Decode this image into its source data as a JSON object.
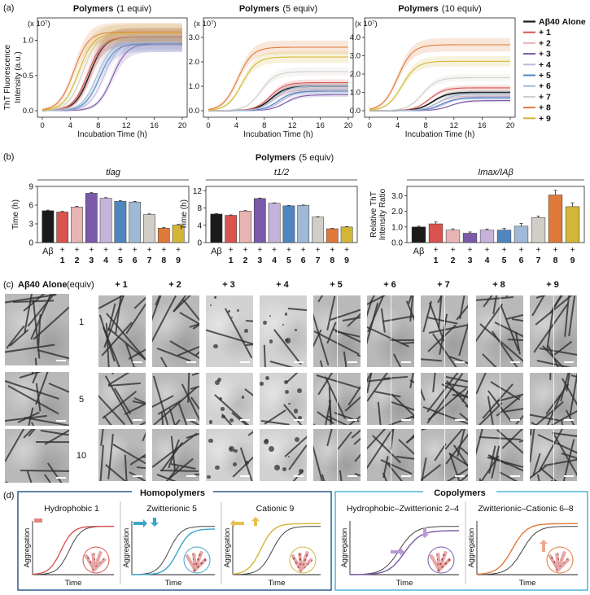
{
  "panel_a": {
    "label": "(a)",
    "ylabel_1": "ThT Fluorescence",
    "ylabel_2": "Intensity (a.u.)",
    "xlabel": "Incubation Time (h)",
    "scale": "(x 10⁷)",
    "legend": [
      {
        "label": "Aβ40 Alone",
        "color": "#1a1a1a"
      },
      {
        "label": "+ 1",
        "color": "#d9534f"
      },
      {
        "label": "+ 2",
        "color": "#e8b4b4"
      },
      {
        "label": "+ 3",
        "color": "#7a5aa8"
      },
      {
        "label": "+ 4",
        "color": "#c5b3dc"
      },
      {
        "label": "+ 5",
        "color": "#4f86c0"
      },
      {
        "label": "+ 6",
        "color": "#9fb9d6"
      },
      {
        "label": "+ 7",
        "color": "#d0cec6"
      },
      {
        "label": "+ 8",
        "color": "#e07a3a"
      },
      {
        "label": "+ 9",
        "color": "#d4b636"
      }
    ]
  },
  "panel_b": {
    "label": "(b)",
    "heading_bold": "Polymers",
    "heading_rest": "(5 equiv)"
  },
  "panel_c": {
    "label": "(c)",
    "alone_label": "Aβ40 Alone",
    "equiv_label": "(equiv)",
    "columns": [
      "+ 1",
      "+ 2",
      "+ 3",
      "+ 4",
      "+ 5",
      "+ 6",
      "+ 7",
      "+ 8",
      "+ 9"
    ],
    "rows": [
      "1",
      "5",
      "10"
    ]
  },
  "panel_d": {
    "label": "(d)",
    "homo_title": "Homopolymers",
    "co_title": "Copolymers",
    "cards": [
      {
        "title": "Hydrophobic 1"
      },
      {
        "title": "Zwitterionic 5"
      },
      {
        "title": "Cationic 9"
      },
      {
        "title": "Hydrophobic–Zwitterionic 2–4"
      },
      {
        "title": "Zwitterionic–Cationic 6–8"
      }
    ],
    "axis_y": "Aggregation",
    "axis_x": "Time"
  },
  "chart_data": [
    {
      "type": "line",
      "title": "Polymers (1 equiv)",
      "xlabel": "Incubation Time (h)",
      "ylabel": "ThT Fluorescence Intensity (a.u.)",
      "xlim": [
        0,
        20
      ],
      "ylim": [
        0,
        1.25
      ],
      "xticks": [
        0,
        4,
        8,
        12,
        16,
        20
      ],
      "yticks": [
        0.0,
        0.5,
        1.0
      ],
      "series": [
        {
          "name": "Aβ40 Alone",
          "t50": 6.8,
          "max": 1.05
        },
        {
          "name": "+ 1",
          "t50": 6.5,
          "max": 1.05
        },
        {
          "name": "+ 2",
          "t50": 7.0,
          "max": 1.0
        },
        {
          "name": "+ 3",
          "t50": 10.0,
          "max": 0.95
        },
        {
          "name": "+ 4",
          "t50": 8.8,
          "max": 0.98
        },
        {
          "name": "+ 5",
          "t50": 8.2,
          "max": 0.95
        },
        {
          "name": "+ 6",
          "t50": 7.8,
          "max": 0.98
        },
        {
          "name": "+ 7",
          "t50": 5.8,
          "max": 1.1
        },
        {
          "name": "+ 8",
          "t50": 4.5,
          "max": 1.12
        },
        {
          "name": "+ 9",
          "t50": 5.2,
          "max": 1.1
        }
      ]
    },
    {
      "type": "line",
      "title": "Polymers (5 equiv)",
      "xlabel": "Incubation Time (h)",
      "xlim": [
        0,
        20
      ],
      "ylim": [
        0,
        3.6
      ],
      "xticks": [
        0,
        4,
        8,
        12,
        16,
        20
      ],
      "yticks": [
        0.0,
        1.0,
        2.0,
        3.0
      ],
      "series": [
        {
          "name": "Aβ40 Alone",
          "t50": 9.0,
          "max": 1.0
        },
        {
          "name": "+ 1",
          "t50": 8.8,
          "max": 1.15
        },
        {
          "name": "+ 2",
          "t50": 9.2,
          "max": 0.85
        },
        {
          "name": "+ 3",
          "t50": 11.0,
          "max": 0.65
        },
        {
          "name": "+ 4",
          "t50": 10.5,
          "max": 0.8
        },
        {
          "name": "+ 5",
          "t50": 10.0,
          "max": 0.8
        },
        {
          "name": "+ 6",
          "t50": 9.5,
          "max": 1.0
        },
        {
          "name": "+ 7",
          "t50": 7.5,
          "max": 1.6
        },
        {
          "name": "+ 8",
          "t50": 4.2,
          "max": 2.6
        },
        {
          "name": "+ 9",
          "t50": 4.8,
          "max": 2.2
        }
      ]
    },
    {
      "type": "line",
      "title": "Polymers (10 equiv)",
      "xlabel": "Incubation Time (h)",
      "xlim": [
        0,
        20
      ],
      "ylim": [
        0,
        4.8
      ],
      "xticks": [
        0,
        4,
        8,
        12,
        16,
        20
      ],
      "yticks": [
        0.0,
        1.0,
        2.0,
        3.0,
        4.0
      ],
      "series": [
        {
          "name": "Aβ40 Alone",
          "t50": 9.0,
          "max": 1.0
        },
        {
          "name": "+ 1",
          "t50": 8.5,
          "max": 1.25
        },
        {
          "name": "+ 2",
          "t50": 9.5,
          "max": 0.8
        },
        {
          "name": "+ 3",
          "t50": 11.5,
          "max": 0.55
        },
        {
          "name": "+ 4",
          "t50": 10.8,
          "max": 0.75
        },
        {
          "name": "+ 5",
          "t50": 10.2,
          "max": 0.7
        },
        {
          "name": "+ 6",
          "t50": 9.8,
          "max": 0.9
        },
        {
          "name": "+ 7",
          "t50": 7.5,
          "max": 1.8
        },
        {
          "name": "+ 8",
          "t50": 4.0,
          "max": 3.6
        },
        {
          "name": "+ 9",
          "t50": 4.6,
          "max": 2.7
        }
      ]
    },
    {
      "type": "bar",
      "title": "tlag",
      "ylabel": "Time (h)",
      "ylim": [
        0,
        9
      ],
      "yticks": [
        0,
        3,
        6,
        9
      ],
      "categories": [
        "Aβ",
        "+ 1",
        "+ 2",
        "+ 3",
        "+ 4",
        "+ 5",
        "+ 6",
        "+ 7",
        "+ 8",
        "+ 9"
      ],
      "values": [
        5.1,
        4.9,
        5.7,
        7.9,
        7.1,
        6.6,
        6.5,
        4.5,
        2.3,
        2.8
      ],
      "errors": [
        0.1,
        0.1,
        0.1,
        0.1,
        0.1,
        0.1,
        0.1,
        0.1,
        0.1,
        0.1
      ]
    },
    {
      "type": "bar",
      "title": "t1/2",
      "ylabel": "Time (h)",
      "ylim": [
        0,
        13
      ],
      "yticks": [
        0,
        4,
        8,
        12
      ],
      "categories": [
        "Aβ",
        "+ 1",
        "+ 2",
        "+ 3",
        "+ 4",
        "+ 5",
        "+ 6",
        "+ 7",
        "+ 8",
        "+ 9"
      ],
      "values": [
        6.6,
        6.3,
        7.3,
        10.2,
        9.1,
        8.5,
        8.6,
        5.9,
        3.2,
        3.6
      ],
      "errors": [
        0.1,
        0.1,
        0.1,
        0.1,
        0.1,
        0.1,
        0.1,
        0.1,
        0.1,
        0.1
      ]
    },
    {
      "type": "bar",
      "title": "Imax/IAβ",
      "ylabel": "Relative ThT Intensity Ratio",
      "ylim": [
        0,
        3.6
      ],
      "yticks": [
        0.0,
        1.0,
        2.0,
        3.0
      ],
      "categories": [
        "Aβ",
        "+ 1",
        "+ 2",
        "+ 3",
        "+ 4",
        "+ 5",
        "+ 6",
        "+ 7",
        "+ 8",
        "+ 9"
      ],
      "values": [
        1.0,
        1.2,
        0.8,
        0.6,
        0.8,
        0.8,
        1.05,
        1.6,
        3.05,
        2.3
      ],
      "errors": [
        0.05,
        0.12,
        0.08,
        0.08,
        0.07,
        0.12,
        0.18,
        0.1,
        0.3,
        0.25
      ]
    }
  ]
}
